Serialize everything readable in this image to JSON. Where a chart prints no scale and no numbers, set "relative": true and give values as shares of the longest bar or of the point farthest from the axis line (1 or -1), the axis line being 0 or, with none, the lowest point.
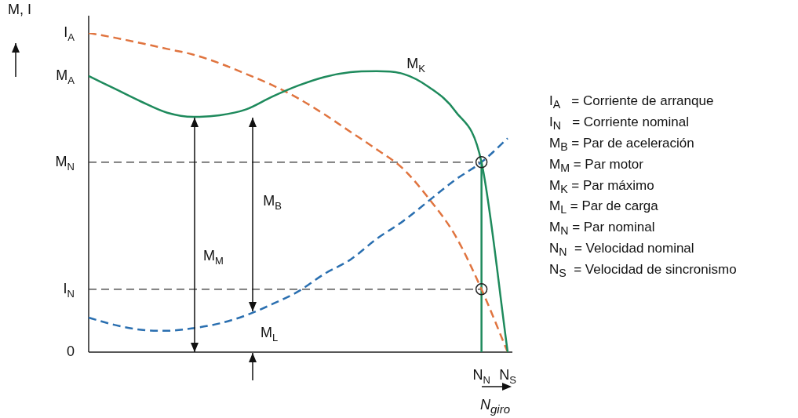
{
  "chart_data": {
    "type": "line",
    "relative": true,
    "legend": false,
    "marker": "none",
    "ylabel": "M, I",
    "xlabel": "N$_{giro}$",
    "categories": [
      null,
      null,
      null,
      null,
      null,
      null,
      null,
      null,
      null,
      null,
      null,
      null,
      null,
      null,
      null,
      "N$_{N}$",
      "N$_{S}$"
    ],
    "series": [
      {
        "color": "#1e8a5c",
        "line_style": "solid",
        "values": [
          0.865,
          0.825,
          0.785,
          0.75,
          0.737,
          0.742,
          0.76,
          0.8,
          0.835,
          0.862,
          0.877,
          0.88,
          0.872,
          0.83,
          0.755,
          0.595,
          0
        ]
      },
      {
        "color": "#e0743f",
        "line_style": "dashed",
        "values": [
          1,
          0.985,
          0.968,
          0.95,
          0.932,
          0.905,
          0.872,
          0.837,
          0.795,
          0.745,
          0.69,
          0.635,
          0.575,
          0.48,
          0.365,
          0.197,
          0
        ]
      },
      {
        "color": "#2a6fb0",
        "line_style": "dashed",
        "values": [
          0.108,
          0.085,
          0.07,
          0.067,
          0.075,
          0.09,
          0.115,
          0.15,
          0.19,
          0.245,
          0.29,
          0.355,
          0.41,
          0.475,
          0.54,
          0.595,
          0.67
        ]
      }
    ],
    "ref_lines": [
      {
        "axis": "y",
        "value": 0.595,
        "label": "M$_{N}$",
        "color": "#333333",
        "line_style": "dashed"
      },
      {
        "axis": "y",
        "value": 0.197,
        "label": "I$_{N}$",
        "color": "#333333",
        "line_style": "dashed"
      },
      {
        "axis": "x",
        "value": "N$_{N}$",
        "color": "#1e8a5c",
        "line_style": "solid"
      }
    ],
    "annotations": [
      "I$_{A}$",
      "M$_{A}$",
      "0",
      "M$_{K}$",
      "M$_{M}$",
      "M$_{B}$",
      "M$_{L}$",
      "I$_{A}$   = Corriente de arranque",
      "I$_{N}$   = Corriente nominal",
      "M$_{B}$ = Par de aceleración",
      "M$_{M}$ = Par motor",
      "M$_{K}$ = Par máximo",
      "M$_{L}$ = Par de carga",
      "M$_{N}$ = Par nominal",
      "N$_{N}$  = Velocidad nominal",
      "N$_{S}$  = Velocidad de sincronismo"
    ]
  }
}
